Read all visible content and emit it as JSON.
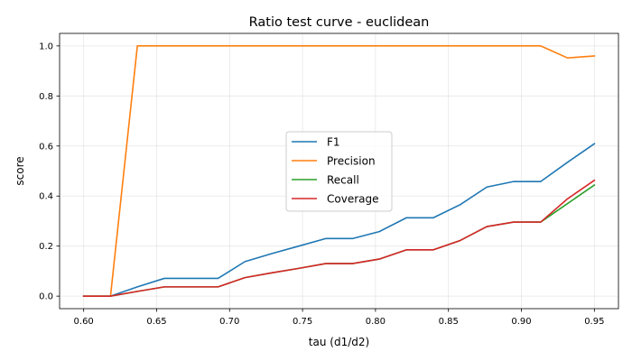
{
  "chart_data": {
    "type": "line",
    "title": "Ratio test curve - euclidean",
    "xlabel": "tau (d1/d2)",
    "ylabel": "score",
    "xlim": [
      0.5835,
      0.9665
    ],
    "ylim": [
      -0.05,
      1.05
    ],
    "xticks": [
      "0.60",
      "0.65",
      "0.70",
      "0.75",
      "0.80",
      "0.85",
      "0.90",
      "0.95"
    ],
    "yticks": [
      "0.0",
      "0.2",
      "0.4",
      "0.6",
      "0.8",
      "1.0"
    ],
    "grid": true,
    "legend_position": "center-right",
    "x": [
      0.6,
      0.6184,
      0.6368,
      0.6553,
      0.6737,
      0.6921,
      0.7105,
      0.7289,
      0.7474,
      0.7658,
      0.7842,
      0.8026,
      0.8211,
      0.8395,
      0.8579,
      0.8763,
      0.8947,
      0.9132,
      0.9316,
      0.95
    ],
    "series": [
      {
        "name": "F1",
        "color": "#1f77b4",
        "values": [
          0.0,
          0.0,
          0.037,
          0.071,
          0.071,
          0.071,
          0.138,
          0.17,
          0.2,
          0.23,
          0.23,
          0.258,
          0.313,
          0.313,
          0.365,
          0.436,
          0.458,
          0.458,
          0.535,
          0.609
        ]
      },
      {
        "name": "Precision",
        "color": "#ff7f0e",
        "values": [
          0.0,
          0.0,
          1.0,
          1.0,
          1.0,
          1.0,
          1.0,
          1.0,
          1.0,
          1.0,
          1.0,
          1.0,
          1.0,
          1.0,
          1.0,
          1.0,
          1.0,
          1.0,
          0.952,
          0.96
        ]
      },
      {
        "name": "Recall",
        "color": "#2ca02c",
        "values": [
          0.0,
          0.0,
          0.019,
          0.037,
          0.037,
          0.037,
          0.074,
          0.093,
          0.111,
          0.13,
          0.13,
          0.148,
          0.185,
          0.185,
          0.222,
          0.278,
          0.296,
          0.296,
          0.37,
          0.444
        ]
      },
      {
        "name": "Coverage",
        "color": "#d62728",
        "values": [
          0.0,
          0.0,
          0.019,
          0.037,
          0.037,
          0.037,
          0.074,
          0.093,
          0.111,
          0.13,
          0.13,
          0.148,
          0.185,
          0.185,
          0.222,
          0.278,
          0.296,
          0.296,
          0.389,
          0.463
        ]
      }
    ]
  }
}
